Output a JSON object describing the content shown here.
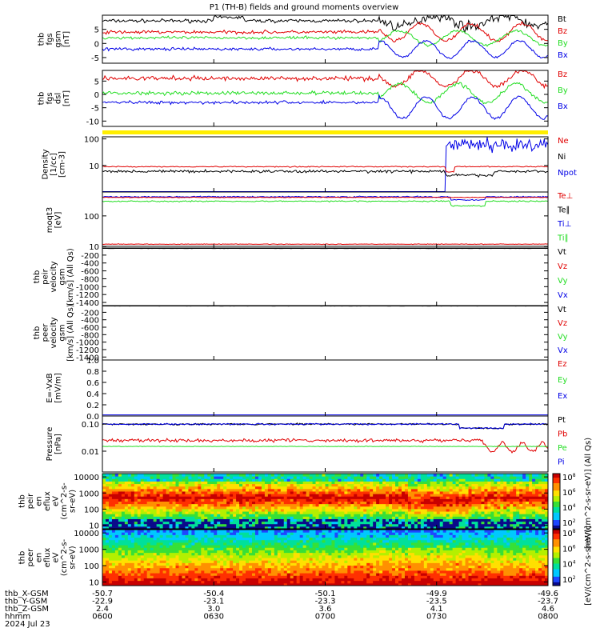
{
  "title": "P1  (TH-B) fields and ground moments overview",
  "colors": {
    "black": "#000000",
    "red": "#e00000",
    "green": "#22dd22",
    "blue": "#0000e6",
    "yellow": "#ffee00"
  },
  "panels": [
    {
      "id": "fgs_gsm",
      "ylabel": [
        "thb",
        "fgs",
        "gsm",
        "[nT]"
      ],
      "ticks": [
        {
          "v": 5,
          "t": "5"
        },
        {
          "v": 0,
          "t": "0"
        },
        {
          "v": -5,
          "t": "-5"
        }
      ],
      "ylim": [
        -7,
        10
      ],
      "log": false,
      "legend": [
        {
          "t": "Bt",
          "c": "black"
        },
        {
          "t": "Bz",
          "c": "red"
        },
        {
          "t": "By",
          "c": "green"
        },
        {
          "t": "Bx",
          "c": "blue"
        }
      ]
    },
    {
      "id": "fgs_dsl",
      "ylabel": [
        "thb",
        "fgs",
        "dsl",
        "[nT]"
      ],
      "ticks": [
        {
          "v": 5,
          "t": "5"
        },
        {
          "v": 0,
          "t": "0"
        },
        {
          "v": -5,
          "t": "-5"
        },
        {
          "v": -10,
          "t": "-10"
        }
      ],
      "ylim": [
        -12,
        9
      ],
      "log": false,
      "legend": [
        {
          "t": "Bz",
          "c": "red"
        },
        {
          "t": "By",
          "c": "green"
        },
        {
          "t": "Bx",
          "c": "blue"
        }
      ]
    },
    {
      "id": "density",
      "ylabel": [
        "Density",
        "[1/cc]",
        "[cm-3]"
      ],
      "ticks": [
        {
          "v": 100,
          "t": "100"
        },
        {
          "v": 10,
          "t": "10"
        }
      ],
      "ylim": [
        1,
        120
      ],
      "log": true,
      "legend": [
        {
          "t": "Ne",
          "c": "red"
        },
        {
          "t": "Ni",
          "c": "black"
        },
        {
          "t": "Npot",
          "c": "blue"
        }
      ]
    },
    {
      "id": "temperature",
      "ylabel": [
        "moqt3",
        "[eV]"
      ],
      "ticks": [
        {
          "v": 100,
          "t": "100"
        },
        {
          "v": 10,
          "t": "10"
        }
      ],
      "ylim": [
        9,
        600
      ],
      "log": true,
      "legend": [
        {
          "t": "Te⊥",
          "c": "red"
        },
        {
          "t": "Te∥",
          "c": "black"
        },
        {
          "t": "Ti⊥",
          "c": "blue"
        },
        {
          "t": "Ti∥",
          "c": "green"
        }
      ]
    },
    {
      "id": "peir_velocity",
      "ylabel": [
        "thb",
        "peir",
        "velocity",
        "gsm",
        "[km/s] (All Qs)"
      ],
      "ticks": [
        {
          "v": -200,
          "t": "-200"
        },
        {
          "v": -400,
          "t": "-400"
        },
        {
          "v": -600,
          "t": "-600"
        },
        {
          "v": -800,
          "t": "-800"
        },
        {
          "v": -1000,
          "t": "-1000"
        },
        {
          "v": -1200,
          "t": "-1200"
        },
        {
          "v": -1400,
          "t": "-1400"
        }
      ],
      "ylim": [
        -1480,
        -20
      ],
      "log": false,
      "legend": [
        {
          "t": "Vt",
          "c": "black"
        },
        {
          "t": "Vz",
          "c": "red"
        },
        {
          "t": "Vy",
          "c": "green"
        },
        {
          "t": "Vx",
          "c": "blue"
        }
      ]
    },
    {
      "id": "peer_velocity",
      "ylabel": [
        "thb",
        "peer",
        "velocity",
        "gsm",
        "[km/s] (All Qs)"
      ],
      "ticks": [
        {
          "v": -200,
          "t": "-200"
        },
        {
          "v": -400,
          "t": "-400"
        },
        {
          "v": -600,
          "t": "-600"
        },
        {
          "v": -800,
          "t": "-800"
        },
        {
          "v": -1000,
          "t": "-1000"
        },
        {
          "v": -1200,
          "t": "-1200"
        },
        {
          "v": -1400,
          "t": "-1400"
        }
      ],
      "ylim": [
        -1480,
        -20
      ],
      "log": false,
      "legend": [
        {
          "t": "Vt",
          "c": "black"
        },
        {
          "t": "Vz",
          "c": "red"
        },
        {
          "t": "Vy",
          "c": "green"
        },
        {
          "t": "Vx",
          "c": "blue"
        }
      ]
    },
    {
      "id": "efield",
      "ylabel": [
        "E=-VxB",
        "[mV/m]"
      ],
      "ticks": [
        {
          "v": 1.0,
          "t": "1.0"
        },
        {
          "v": 0.8,
          "t": "0.8"
        },
        {
          "v": 0.6,
          "t": "0.6"
        },
        {
          "v": 0.4,
          "t": "0.4"
        },
        {
          "v": 0.2,
          "t": "0.2"
        },
        {
          "v": 0.0,
          "t": "0.0"
        }
      ],
      "ylim": [
        0,
        1
      ],
      "log": false,
      "legend": [
        {
          "t": "Ez",
          "c": "red"
        },
        {
          "t": "Ey",
          "c": "green"
        },
        {
          "t": "Ex",
          "c": "blue"
        }
      ]
    },
    {
      "id": "pressure",
      "ylabel": [
        "Pressure",
        "[nPa]"
      ],
      "ticks": [
        {
          "v": 0.1,
          "t": "0.10"
        },
        {
          "v": 0.01,
          "t": "0.01"
        }
      ],
      "ylim": [
        0.0017,
        0.2
      ],
      "log": true,
      "legend": [
        {
          "t": "Pt",
          "c": "black"
        },
        {
          "t": "Pb",
          "c": "red"
        },
        {
          "t": "Pe",
          "c": "green"
        },
        {
          "t": "Pi",
          "c": "blue"
        }
      ]
    },
    {
      "id": "peir_eflux",
      "ylabel": [
        "thb",
        "peir",
        "en",
        "eflux",
        "eV",
        "(cm^2-s-",
        "sr-eV)"
      ],
      "ticks": [
        {
          "v": 10000,
          "t": "10000"
        },
        {
          "v": 1000,
          "t": "1000"
        },
        {
          "v": 100,
          "t": "100"
        },
        {
          "v": 10,
          "t": "10"
        }
      ],
      "ylim": [
        6,
        16000
      ],
      "log": true,
      "legend": [],
      "colorbar": {
        "label": "[eV/(cm^2-s-sr-eV)] (All Qs)",
        "ticks": [
          "10^8",
          "10^6",
          "10^4",
          "10^2"
        ]
      }
    },
    {
      "id": "peer_eflux",
      "ylabel": [
        "thb",
        "peer",
        "en",
        "eflux",
        "eV",
        "(cm^2-s-",
        "sr-eV)"
      ],
      "ticks": [
        {
          "v": 10000,
          "t": "10000"
        },
        {
          "v": 1000,
          "t": "1000"
        },
        {
          "v": 100,
          "t": "100"
        },
        {
          "v": 10,
          "t": "10"
        }
      ],
      "ylim": [
        6,
        16000
      ],
      "log": true,
      "legend": [],
      "colorbar": {
        "label": "[eV/(cm^2-s-sr-eV)]",
        "ticks": [
          "10^8",
          "10^6",
          "10^4",
          "10^2"
        ]
      }
    }
  ],
  "chart_data": {
    "type": "line",
    "title": "P1  (TH-B) fields and ground moments overview",
    "x_range_utc": [
      "06:00",
      "08:00"
    ],
    "grid": false,
    "series_levels": {
      "fgs_gsm": {
        "Bt": 8,
        "Bz": 4,
        "By": 2,
        "Bx": -2
      },
      "fgs_dsl": {
        "Bz": 6,
        "By": 0.5,
        "Bx": -3
      },
      "density": {
        "Ne": 9,
        "Ni": 6,
        "Npot": 60
      },
      "temperature": {
        "Te⊥": 400,
        "Ti⊥": 420,
        "Ti∥": 300,
        "Te∥": 12
      },
      "peir_velocity": {
        "Vt": -30
      },
      "peer_velocity": {
        "Vt": -30
      },
      "efield": {
        "Ez": 0.02
      },
      "pressure": {
        "Pt": 0.1,
        "Pi": 0.1,
        "Pb": 0.025,
        "Pe": 0.015
      }
    }
  },
  "axis_footer": {
    "rows": [
      {
        "label": "thb_X-GSM",
        "values": [
          "-50.7",
          "-50.4",
          "-50.1",
          "-49.9",
          "-49.6"
        ]
      },
      {
        "label": "thb_Y-GSM",
        "values": [
          "-22.9",
          "-23.1",
          "-23.3",
          "-23.5",
          "-23.7"
        ]
      },
      {
        "label": "thb_Z-GSM",
        "values": [
          "2.4",
          "3.0",
          "3.6",
          "4.1",
          "4.6"
        ]
      },
      {
        "label": "hhmm",
        "values": [
          "0600",
          "0630",
          "0700",
          "0730",
          "0800"
        ]
      }
    ],
    "date": "2024 Jul 23"
  }
}
